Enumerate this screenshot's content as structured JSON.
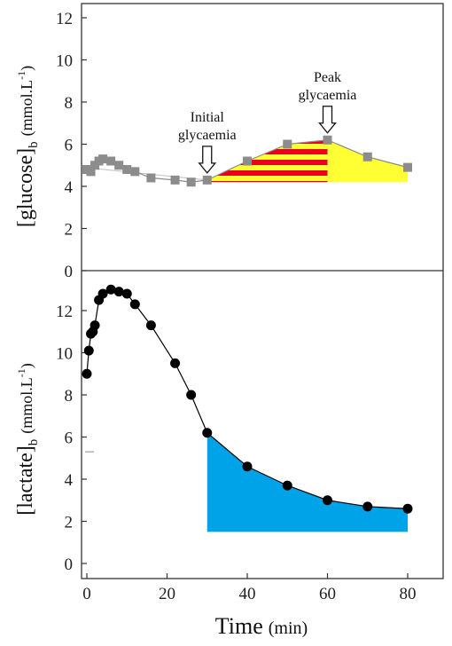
{
  "chart_data": [
    {
      "type": "line",
      "panel": "top",
      "ylabel_main": "[glucose]",
      "ylabel_sub": "b",
      "ylabel_units_pre": "(mmol.L",
      "ylabel_units_sup": "-1",
      "ylabel_units_post": ")",
      "ylim": [
        0,
        12
      ],
      "yticks": [
        "0",
        "2",
        "4",
        "6",
        "8",
        "10",
        "12"
      ],
      "colors": {
        "marker": "#8c8c8c",
        "line": "#8c8c8c",
        "yellow_area": "#ffff33",
        "stripe_red": "#e8001c",
        "trend": "#bfbfbf"
      },
      "x": [
        0,
        1,
        2,
        3,
        4,
        6,
        8,
        10,
        12,
        16,
        22,
        26,
        30,
        40,
        50,
        60,
        70,
        80
      ],
      "values": [
        4.8,
        4.7,
        5.0,
        5.2,
        5.3,
        5.2,
        5.0,
        4.8,
        4.7,
        4.4,
        4.3,
        4.2,
        4.3,
        5.2,
        6.0,
        6.2,
        5.4,
        4.9
      ],
      "baseline_y": 4.9,
      "area_start_x": 30,
      "stripe_end_x": 60,
      "annotations": [
        {
          "lines": [
            "Initial",
            "glycaemia"
          ],
          "x": 30
        },
        {
          "lines": [
            "Peak",
            "glycaemia"
          ],
          "x": 60
        }
      ]
    },
    {
      "type": "line",
      "panel": "bottom",
      "ylabel_main": "[lactate]",
      "ylabel_sub": "b",
      "ylabel_units_pre": "(mmol.L",
      "ylabel_units_sup": "-1",
      "ylabel_units_post": ")",
      "ylim": [
        0,
        12
      ],
      "yticks": [
        "0",
        "2",
        "4",
        "6",
        "8",
        "10",
        "12"
      ],
      "colors": {
        "marker": "#000000",
        "line": "#000000",
        "blue_area": "#00a2e8",
        "area_line": "#7f7f7f"
      },
      "x": [
        0,
        0.5,
        1,
        1.5,
        2,
        3,
        4,
        6,
        8,
        10,
        12,
        16,
        22,
        26,
        30,
        40,
        50,
        60,
        70,
        80
      ],
      "values": [
        9.0,
        10.1,
        10.9,
        11.0,
        11.3,
        12.5,
        12.8,
        13.0,
        12.9,
        12.8,
        12.3,
        11.3,
        9.5,
        8.0,
        6.2,
        4.6,
        3.7,
        3.0,
        2.7,
        2.6
      ],
      "area_start_x": 30,
      "area_floor_y": 1.5,
      "area_end_x": 80,
      "xlabel_main": "Time",
      "xlabel_units": "(min)",
      "xlim": [
        0,
        88
      ],
      "xticks": [
        "0",
        "20",
        "40",
        "60",
        "80"
      ]
    }
  ]
}
